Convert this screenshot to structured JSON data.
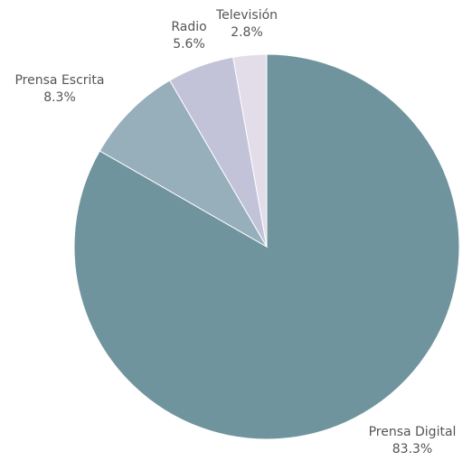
{
  "chart_data": {
    "type": "pie",
    "categories": [
      "Prensa Digital",
      "Prensa Escrita",
      "Radio",
      "Televisión"
    ],
    "values": [
      83.3,
      8.3,
      5.6,
      2.8
    ],
    "value_labels": [
      "83.3%",
      "8.3%",
      "5.6%",
      "2.8%"
    ],
    "colors": [
      "#6f949e",
      "#97aebb",
      "#c2c3d8",
      "#e3dde9"
    ],
    "start_angle": "12 o'clock",
    "direction": "clockwise",
    "legend": "none"
  }
}
